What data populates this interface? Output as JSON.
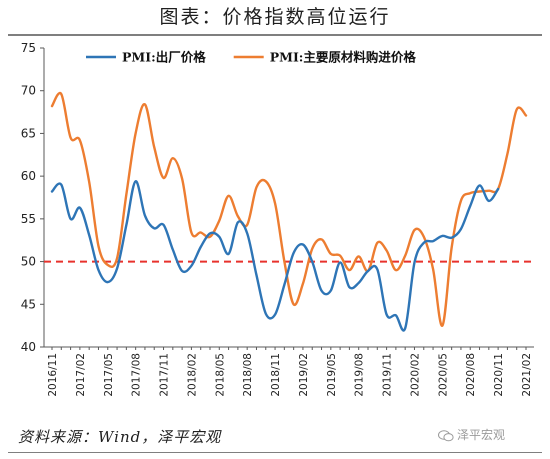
{
  "header": {
    "title": "图表：价格指数高位运行"
  },
  "footer": {
    "source": "资料来源：Wind，泽平宏观",
    "watermark": "泽平宏观"
  },
  "chart_data": {
    "type": "line",
    "title": "图表：价格指数高位运行",
    "xlabel": "",
    "ylabel": "",
    "ylim": [
      40,
      75
    ],
    "yticks": [
      40,
      45,
      50,
      55,
      60,
      65,
      70,
      75
    ],
    "x": [
      "2016/11",
      "2016/12",
      "2017/01",
      "2017/02",
      "2017/03",
      "2017/04",
      "2017/05",
      "2017/06",
      "2017/07",
      "2017/08",
      "2017/09",
      "2017/10",
      "2017/11",
      "2017/12",
      "2018/01",
      "2018/02",
      "2018/03",
      "2018/04",
      "2018/05",
      "2018/06",
      "2018/07",
      "2018/08",
      "2018/09",
      "2018/10",
      "2018/11",
      "2018/12",
      "2019/01",
      "2019/02",
      "2019/03",
      "2019/04",
      "2019/05",
      "2019/06",
      "2019/07",
      "2019/08",
      "2019/09",
      "2019/10",
      "2019/11",
      "2019/12",
      "2020/01",
      "2020/02",
      "2020/03",
      "2020/04",
      "2020/05",
      "2020/06",
      "2020/07",
      "2020/08",
      "2020/09",
      "2020/10",
      "2020/11",
      "2020/12",
      "2021/01",
      "2021/02"
    ],
    "xticks": [
      "2016/11",
      "2017/02",
      "2017/05",
      "2017/08",
      "2017/11",
      "2018/02",
      "2018/05",
      "2018/08",
      "2018/11",
      "2019/02",
      "2019/05",
      "2019/08",
      "2019/11",
      "2020/02",
      "2020/05",
      "2020/08",
      "2020/11",
      "2021/02"
    ],
    "series": [
      {
        "name": "PMI:出厂价格",
        "color": "#2e75b6",
        "values": [
          58.2,
          59.0,
          55.0,
          56.3,
          53.1,
          49.0,
          47.6,
          49.2,
          54.3,
          59.4,
          55.4,
          53.9,
          54.3,
          51.4,
          48.9,
          49.5,
          51.7,
          53.3,
          52.9,
          50.9,
          54.6,
          53.3,
          48.4,
          43.9,
          43.8,
          47.3,
          51.0,
          52.0,
          50.0,
          46.6,
          46.6,
          49.9,
          47.0,
          47.5,
          48.9,
          49.1,
          43.8,
          43.7,
          42.2,
          49.9,
          52.2,
          52.4,
          53.0,
          52.8,
          53.8,
          56.5,
          58.9,
          57.1,
          58.5,
          null,
          null,
          null
        ]
      },
      {
        "name": "PMI:主要原材料购进价格",
        "color": "#ed7d31",
        "values": [
          68.2,
          69.6,
          64.5,
          64.2,
          59.3,
          51.8,
          49.6,
          50.4,
          57.9,
          65.0,
          68.4,
          63.4,
          59.8,
          62.1,
          59.7,
          53.4,
          53.4,
          52.9,
          54.8,
          57.7,
          55.3,
          54.3,
          58.7,
          59.4,
          56.8,
          50.0,
          45.0,
          47.4,
          51.5,
          52.6,
          50.9,
          50.7,
          49.0,
          50.6,
          48.9,
          52.2,
          51.3,
          49.0,
          50.7,
          53.7,
          52.9,
          49.1,
          42.5,
          51.6,
          57.1,
          58.0,
          58.2,
          58.3,
          58.5,
          62.6,
          67.8,
          67.1
        ]
      }
    ],
    "reference_line": {
      "value": 50,
      "color": "#e8322c",
      "style": "dashed"
    },
    "legend": {
      "placement": "top",
      "orientation": "horizontal"
    },
    "grid": false
  }
}
